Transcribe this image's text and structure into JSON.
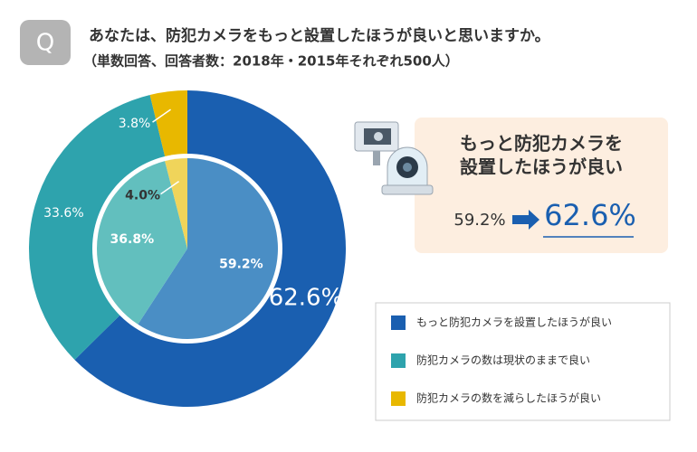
{
  "chart_data": {
    "type": "pie",
    "badge": "Q",
    "title": "あなたは、防犯カメラをもっと設置したほうが良いと思いますか。",
    "subtitle": "（単数回答、回答者数：2018年・2015年それぞれ500人）",
    "categories": [
      "もっと防犯カメラを設置したほうが良い",
      "防犯カメラの数は現状のままで良い",
      "防犯カメラの数を減らしたほうが良い"
    ],
    "rings": [
      {
        "values": [
          62.6,
          33.6,
          3.8
        ],
        "value_labels": [
          "62.6%",
          "33.6%",
          "3.8%"
        ],
        "colors": [
          "#1a5fb0",
          "#2ea3ad",
          "#e8b800"
        ]
      },
      {
        "values": [
          59.2,
          36.8,
          4.0
        ],
        "value_labels": [
          "59.2%",
          "36.8%",
          "4.0%"
        ],
        "colors": [
          "#4a8ec5",
          "#62bfbe",
          "#f0d45a"
        ]
      }
    ],
    "callout": {
      "lines": [
        "もっと防犯カメラを",
        "設置したほうが良い"
      ],
      "from": "59.2%",
      "to": "62.6%"
    }
  }
}
